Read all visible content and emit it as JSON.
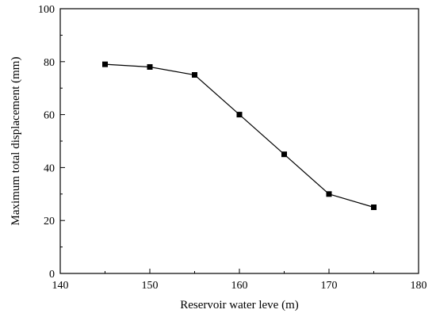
{
  "chart_data": {
    "type": "line",
    "xlabel": "Reservoir water leve (m)",
    "ylabel": "Maximum total displacement (mm)",
    "xlim": [
      140,
      180
    ],
    "ylim": [
      0,
      100
    ],
    "x_major_ticks": [
      140,
      150,
      160,
      170,
      180
    ],
    "x_minor_ticks": [
      145,
      155,
      165,
      175
    ],
    "y_major_ticks": [
      0,
      20,
      40,
      60,
      80,
      100
    ],
    "y_minor_ticks": [
      10,
      30,
      50,
      70,
      90
    ],
    "grid": false,
    "series": [
      {
        "x": [
          145,
          150,
          155,
          160,
          165,
          170,
          175
        ],
        "y": [
          79,
          78,
          75,
          60,
          45,
          30,
          25
        ],
        "marker": "square",
        "color": "#000000"
      }
    ]
  }
}
